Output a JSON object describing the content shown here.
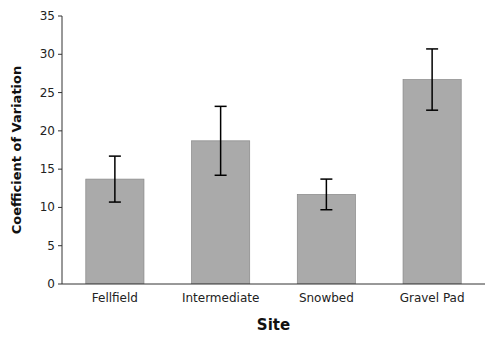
{
  "chart_data": {
    "type": "bar",
    "categories": [
      "Fellfield",
      "Intermediate",
      "Snowbed",
      "Gravel Pad"
    ],
    "values": [
      13.7,
      18.7,
      11.7,
      26.7
    ],
    "errors": [
      3.0,
      4.5,
      2.0,
      4.0
    ],
    "color": "#aaaaaa",
    "xlabel": "Site",
    "ylabel": "Coefficient of Variation",
    "ylim": [
      0,
      35
    ],
    "yticks": [
      0,
      5,
      10,
      15,
      20,
      25,
      30,
      35
    ],
    "grid": false
  }
}
